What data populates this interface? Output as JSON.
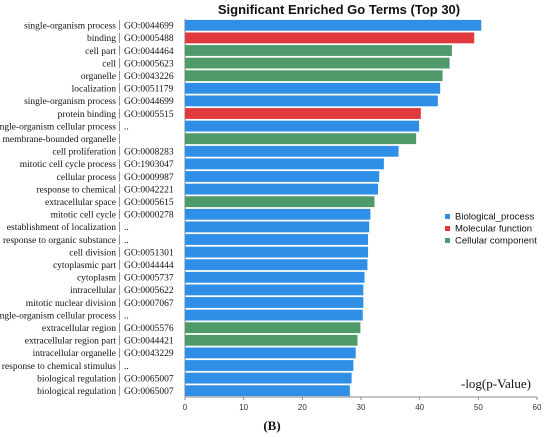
{
  "chart_data": {
    "type": "bar",
    "orientation": "horizontal",
    "title": "Significant Enriched Go Terms (Top 30)",
    "xlabel": "-log(p-Value)",
    "caption": "(B)",
    "xlim": [
      0,
      60
    ],
    "xticks": [
      0,
      10,
      20,
      30,
      40,
      50,
      60
    ],
    "legend_position": "right",
    "legend": [
      {
        "key": "bp",
        "name": "Biological_process",
        "color": "#2f8fe6"
      },
      {
        "key": "mf",
        "name": "Molecular  function",
        "color": "#e0393e"
      },
      {
        "key": "cc",
        "name": "Cellular component",
        "color": "#4e9a6a"
      }
    ],
    "bars": [
      {
        "term": "single-organism process",
        "id": "GO:0044699",
        "value": 50.5,
        "category": "bp"
      },
      {
        "term": "binding",
        "id": "GO:0005488",
        "value": 49.3,
        "category": "mf"
      },
      {
        "term": "cell part",
        "id": "GO:0044464",
        "value": 45.5,
        "category": "cc"
      },
      {
        "term": "cell",
        "id": "GO:0005623",
        "value": 45.1,
        "category": "cc"
      },
      {
        "term": "organelle",
        "id": "GO:0043226",
        "value": 43.9,
        "category": "cc"
      },
      {
        "term": "localization",
        "id": "GO:0051179",
        "value": 43.5,
        "category": "bp"
      },
      {
        "term": "single-organism process",
        "id": "GO:0044699",
        "value": 43.1,
        "category": "bp"
      },
      {
        "term": "protein binding",
        "id": "GO:0005515",
        "value": 40.2,
        "category": "mf"
      },
      {
        "term": "single-organism cellular process",
        "id": "..",
        "value": 39.9,
        "category": "bp"
      },
      {
        "term": "membrane-bounded organelle",
        "id": "",
        "value": 39.4,
        "category": "cc"
      },
      {
        "term": "cell proliferation",
        "id": "GO:0008283",
        "value": 36.4,
        "category": "bp"
      },
      {
        "term": "mitotic cell cycle process",
        "id": "GO:1903047",
        "value": 33.9,
        "category": "bp"
      },
      {
        "term": "cellular process",
        "id": "GO:0009987",
        "value": 33.1,
        "category": "bp"
      },
      {
        "term": "response to chemical",
        "id": "GO:0042221",
        "value": 32.9,
        "category": "bp"
      },
      {
        "term": "extracellular space",
        "id": "GO:0005615",
        "value": 32.3,
        "category": "cc"
      },
      {
        "term": "mitotic cell cycle",
        "id": "GO:0000278",
        "value": 31.6,
        "category": "bp"
      },
      {
        "term": "establishment of localization",
        "id": "..",
        "value": 31.4,
        "category": "bp"
      },
      {
        "term": "response to organic substance",
        "id": "..",
        "value": 31.2,
        "category": "bp"
      },
      {
        "term": "cell division",
        "id": "GO:0051301",
        "value": 31.2,
        "category": "bp"
      },
      {
        "term": "cytoplasmic part",
        "id": "GO:0044444",
        "value": 31.1,
        "category": "bp"
      },
      {
        "term": "cytoplasm",
        "id": "GO:0005737",
        "value": 30.6,
        "category": "bp"
      },
      {
        "term": "intracellular",
        "id": "GO:0005622",
        "value": 30.4,
        "category": "bp"
      },
      {
        "term": "mitotic nuclear division",
        "id": "GO:0007067",
        "value": 30.4,
        "category": "bp"
      },
      {
        "term": "single-organism cellular process",
        "id": "..",
        "value": 30.3,
        "category": "bp"
      },
      {
        "term": "extracellular region",
        "id": "GO:0005576",
        "value": 29.9,
        "category": "cc"
      },
      {
        "term": "extracellular region part",
        "id": "GO:0044421",
        "value": 29.4,
        "category": "cc"
      },
      {
        "term": "intracellular organelle",
        "id": "GO:0043229",
        "value": 29.1,
        "category": "bp"
      },
      {
        "term": "cellular response to chemical stimulus",
        "id": "..",
        "value": 28.7,
        "category": "bp"
      },
      {
        "term": "biological regulation",
        "id": "GO:0065007",
        "value": 28.4,
        "category": "bp"
      },
      {
        "term": "biological regulation",
        "id": "GO:0065007",
        "value": 28.1,
        "category": "bp"
      }
    ]
  }
}
